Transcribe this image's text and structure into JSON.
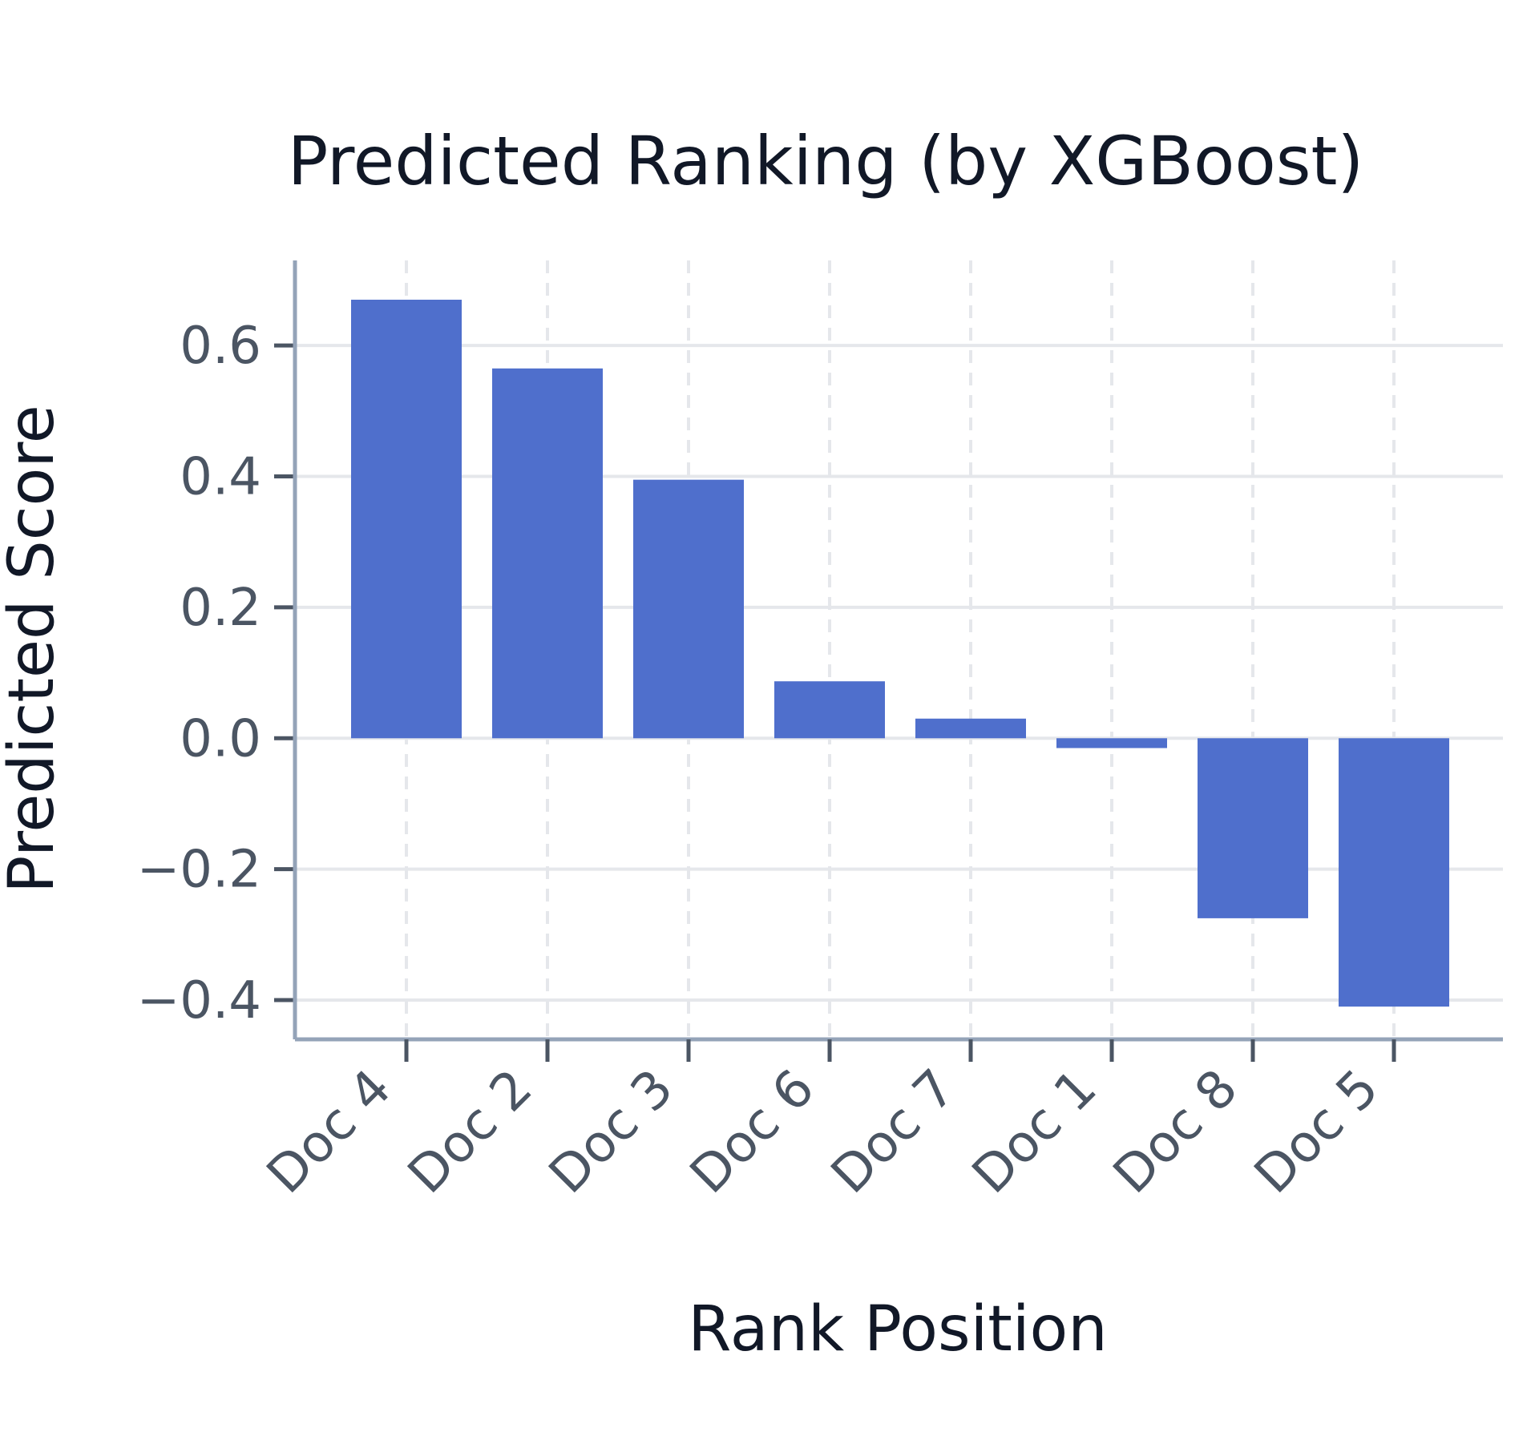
{
  "chart_data": {
    "type": "bar",
    "title": "Predicted Ranking (by XGBoost)",
    "xlabel": "Rank Position",
    "ylabel": "Predicted Score",
    "categories": [
      "Doc 4",
      "Doc 2",
      "Doc 3",
      "Doc 6",
      "Doc 7",
      "Doc 1",
      "Doc 8",
      "Doc 5"
    ],
    "values": [
      0.67,
      0.565,
      0.395,
      0.087,
      0.03,
      -0.015,
      -0.275,
      -0.41
    ],
    "ylim": [
      -0.46,
      0.73
    ],
    "yticks": [
      -0.4,
      -0.2,
      0.0,
      0.2,
      0.4,
      0.6
    ],
    "ytick_labels": [
      "−0.4",
      "−0.2",
      "0.0",
      "0.2",
      "0.4",
      "0.6"
    ],
    "grid": true,
    "bar_color": "#4f6fcc"
  }
}
